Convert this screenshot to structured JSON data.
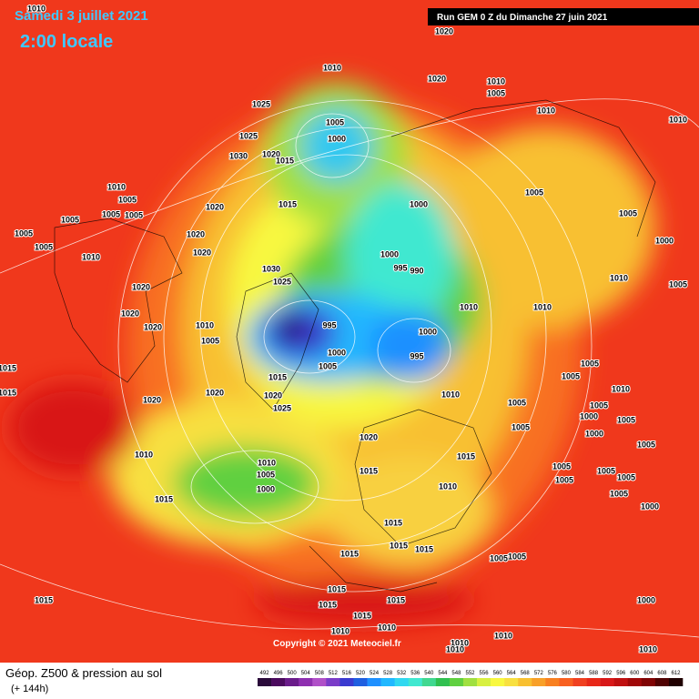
{
  "header": {
    "date": "Samedi 3 juillet 2021",
    "time": "2:00 locale"
  },
  "run": "Run GEM 0 Z du Dimanche 27 juin 2021",
  "copyright": "Copyright © 2021 Meteociel.fr",
  "legend": {
    "title": "Géop. Z500 & pression au sol",
    "subtitle": "(+ 144h)",
    "levels": [
      492,
      496,
      500,
      504,
      508,
      512,
      516,
      520,
      524,
      528,
      532,
      536,
      540,
      544,
      548,
      552,
      556,
      560,
      564,
      568,
      572,
      576,
      580,
      584,
      588,
      592,
      596,
      600,
      604,
      608,
      612
    ],
    "colors": [
      "#2a0a3a",
      "#4b0a5e",
      "#6a1b8a",
      "#8e2fb0",
      "#b050c8",
      "#7a3cc8",
      "#3a3ad0",
      "#1f5fe0",
      "#1e90ff",
      "#20b8ff",
      "#30d8f0",
      "#40e8d0",
      "#40d890",
      "#30c050",
      "#60d040",
      "#a0e040",
      "#d8f040",
      "#f8f840",
      "#f8e040",
      "#f8c030",
      "#f8a028",
      "#f88020",
      "#f86020",
      "#f04020",
      "#e82818",
      "#d81818",
      "#c01010",
      "#a00808",
      "#800404",
      "#500202",
      "#200000"
    ]
  },
  "pressure_labels": [
    1010,
    1020,
    1010,
    1020,
    1010,
    1005,
    1010,
    1010,
    1025,
    1005,
    1000,
    1025,
    1030,
    1020,
    1015,
    1010,
    1005,
    1005,
    1000,
    1020,
    1015,
    1005,
    1005,
    1005,
    1005,
    1005,
    1005,
    1020,
    1000,
    1000,
    995,
    990,
    1010,
    1020,
    1030,
    1025,
    1010,
    1005,
    1020,
    1010,
    1010,
    1020,
    1020,
    1010,
    995,
    1005,
    1000,
    1000,
    995,
    1005,
    1015,
    1005,
    1015,
    1005,
    1015,
    1010,
    1010,
    1020,
    1020,
    1020,
    1005,
    1005,
    1000,
    1025,
    1005,
    1005,
    1020,
    1000,
    1005,
    1010,
    1015,
    1010,
    1005,
    1015,
    1005,
    1005,
    1005,
    1000,
    1010,
    1005,
    1005,
    1015,
    1000,
    1015,
    1015,
    1015,
    1015,
    1005,
    1005,
    1015,
    1015,
    1015,
    1015,
    1015,
    1010,
    1010,
    1010,
    1010,
    1000,
    1010,
    1010
  ]
}
